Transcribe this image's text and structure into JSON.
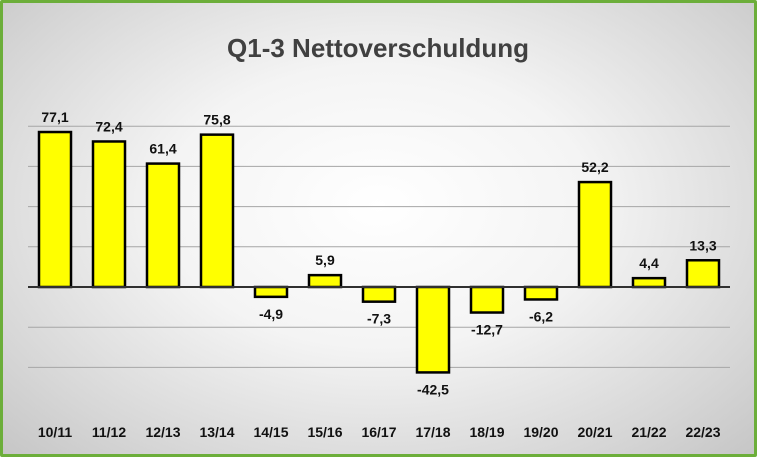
{
  "chart_data": {
    "type": "bar",
    "title": "Q1-3 Nettoverschuldung",
    "categories": [
      "10/11",
      "11/12",
      "12/13",
      "13/14",
      "14/15",
      "15/16",
      "16/17",
      "17/18",
      "18/19",
      "19/20",
      "20/21",
      "21/22",
      "22/23"
    ],
    "values": [
      77.1,
      72.4,
      61.4,
      75.8,
      -4.9,
      5.9,
      -7.3,
      -42.5,
      -12.7,
      -6.2,
      52.2,
      4.4,
      13.3
    ],
    "data_labels": [
      "77,1",
      "72,4",
      "61,4",
      "75,8",
      "-4,9",
      "5,9",
      "-7,3",
      "-42,5",
      "-12,7",
      "-6,2",
      "52,2",
      "4,4",
      "13,3"
    ],
    "xlabel": "",
    "ylabel": "",
    "ylim": [
      -50,
      90
    ],
    "grid": true,
    "legend": "none",
    "colors": {
      "bar": "#ffff00",
      "bar_border": "#000000",
      "frame": "#6cae3a",
      "gridline": "#a6a6a6"
    }
  }
}
